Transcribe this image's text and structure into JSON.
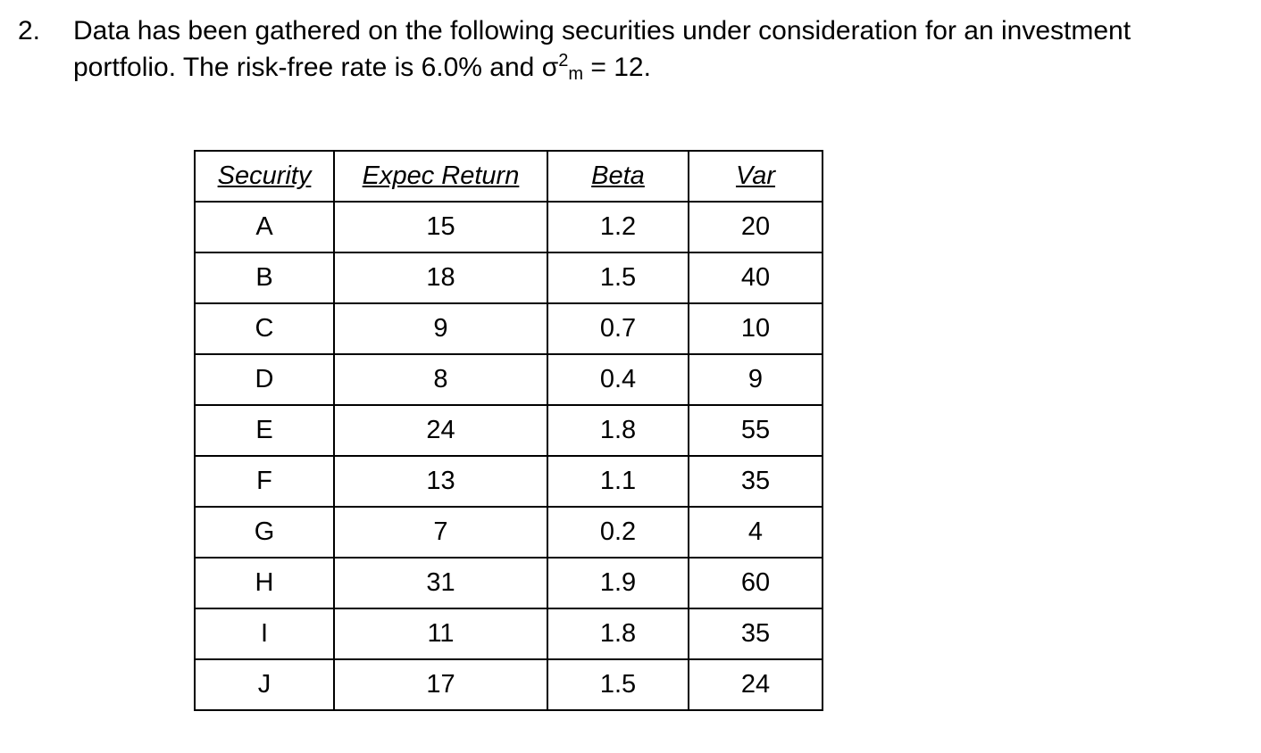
{
  "page": {
    "background_color": "#ffffff",
    "text_color": "#000000"
  },
  "problem": {
    "number": "2.",
    "line1": "Data has been gathered on the following securities under consideration for an investment",
    "line2_part1": "portfolio. The risk-free rate is 6.0% and ",
    "sigma_symbol": "σ",
    "sigma_superscript": "2",
    "sigma_subscript": "m",
    "line2_part2": " = 12."
  },
  "table": {
    "columns": [
      "Security",
      "Expec Return",
      "Beta",
      "Var"
    ],
    "rows": [
      [
        "A",
        "15",
        "1.2",
        "20"
      ],
      [
        "B",
        "18",
        "1.5",
        "40"
      ],
      [
        "C",
        "9",
        "0.7",
        "10"
      ],
      [
        "D",
        "8",
        "0.4",
        "9"
      ],
      [
        "E",
        "24",
        "1.8",
        "55"
      ],
      [
        "F",
        "13",
        "1.1",
        "35"
      ],
      [
        "G",
        "7",
        "0.2",
        "4"
      ],
      [
        "H",
        "31",
        "1.9",
        "60"
      ],
      [
        "I",
        "11",
        "1.8",
        "35"
      ],
      [
        "J",
        "17",
        "1.5",
        "24"
      ]
    ]
  }
}
